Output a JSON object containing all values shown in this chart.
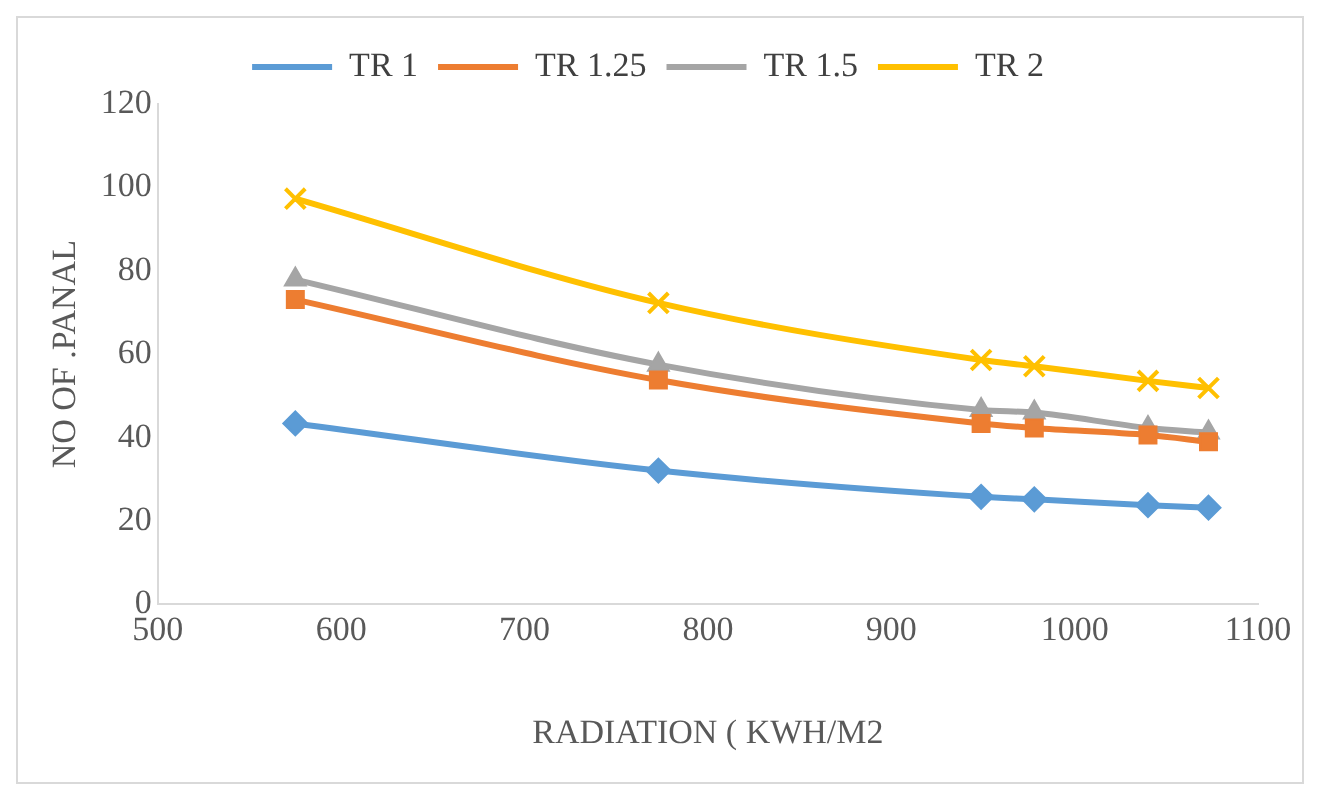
{
  "chart_data": {
    "type": "line",
    "xlabel": "RADIATION ( KWH/M2",
    "ylabel": "NO OF .PANAL",
    "x": [
      575,
      773,
      949,
      978,
      1040,
      1073
    ],
    "series": [
      {
        "name": "TR 1",
        "color": "#5b9bd5",
        "marker": "diamond",
        "values": [
          43.4,
          32.1,
          25.8,
          25.2,
          23.8,
          23.2
        ]
      },
      {
        "name": "TR 1.25",
        "color": "#ed7d31",
        "marker": "square",
        "values": [
          73.1,
          53.8,
          43.4,
          42.3,
          40.6,
          39
        ]
      },
      {
        "name": "TR 1.5",
        "color": "#a5a5a5",
        "marker": "triangle",
        "values": [
          77.9,
          57.5,
          46.6,
          46,
          42.3,
          41.2
        ]
      },
      {
        "name": "TR 2",
        "color": "#ffc000",
        "marker": "cross",
        "values": [
          97.3,
          72.3,
          58.6,
          57.1,
          53.6,
          51.9
        ]
      }
    ],
    "xlim": [
      500,
      1100
    ],
    "xticks": [
      500,
      600,
      700,
      800,
      900,
      1000,
      1100
    ],
    "ylim": [
      0,
      120
    ],
    "yticks": [
      0,
      20,
      40,
      60,
      80,
      100,
      120
    ],
    "grid": false,
    "legend": "top",
    "line_style": "solid"
  }
}
